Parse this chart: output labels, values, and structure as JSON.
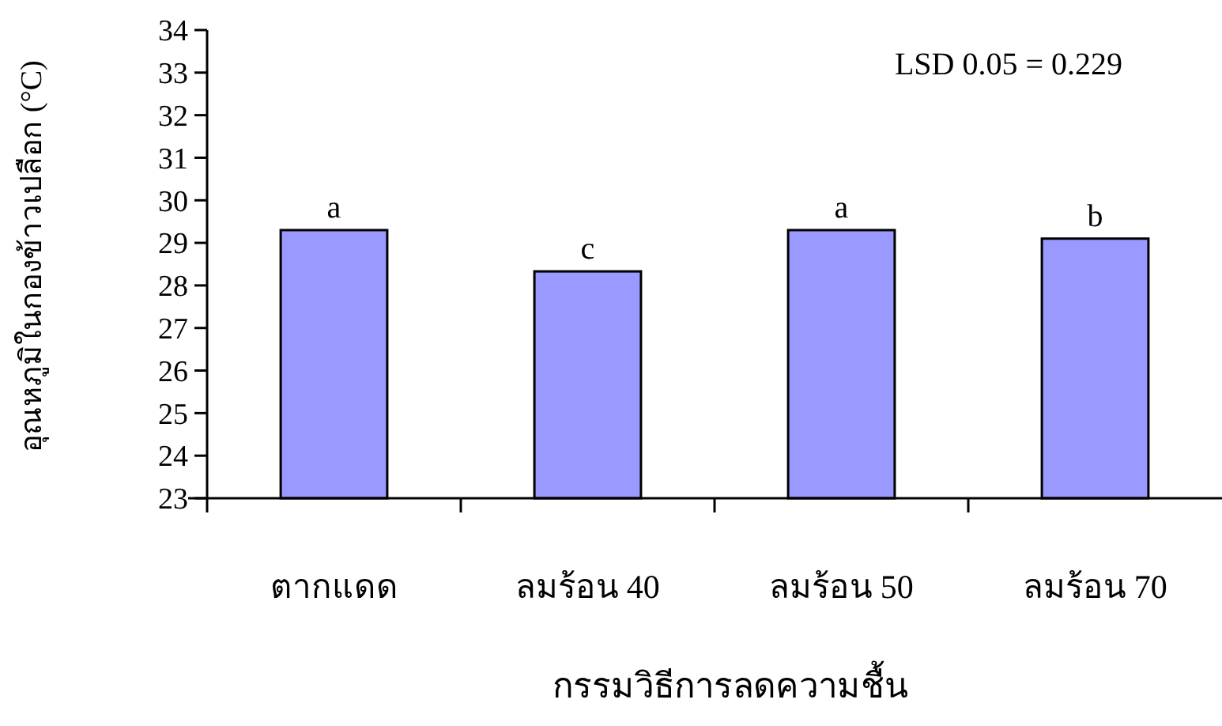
{
  "chart_data": {
    "type": "bar",
    "xlabel": "กรรมวิธีการลดความชื้น",
    "ylabel": "อุณหภูมิในกองข้าวเปลือก (°C)",
    "categories": [
      "ตากแดด",
      "ลมร้อน 40",
      "ลมร้อน 50",
      "ลมร้อน 70"
    ],
    "values": [
      29.3,
      28.33,
      29.3,
      29.1
    ],
    "color": "#9999ff",
    "ylim": [
      23,
      34
    ],
    "yticks": [
      23,
      24,
      25,
      26,
      27,
      28,
      29,
      30,
      31,
      32,
      33,
      34
    ],
    "grid": false,
    "annotations": [
      {
        "text": "a",
        "x": "ตากแดด",
        "y": 29.3
      },
      {
        "text": "c",
        "x": "ลมร้อน 40",
        "y": 28.33
      },
      {
        "text": "a",
        "x": "ลมร้อน 50",
        "y": 29.3
      },
      {
        "text": "b",
        "x": "ลมร้อน 70",
        "y": 29.1
      },
      "LSD 0.05 = 0.229"
    ]
  }
}
